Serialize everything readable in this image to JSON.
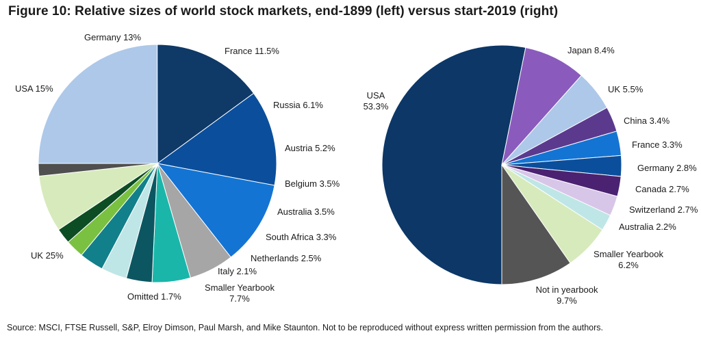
{
  "title": "Figure 10: Relative sizes of world stock markets, end-1899 (left) versus start-2019 (right)",
  "source": "Source: MSCI, FTSE Russell, S&P, Elroy Dimson, Paul Marsh, and Mike Staunton. Not to be reproduced without express written permission from the authors.",
  "chart_data": [
    {
      "type": "pie",
      "title": "",
      "slices": [
        {
          "label": "UK",
          "value": 25,
          "display": "UK 25%",
          "color": "#adc8e9"
        },
        {
          "label": "USA",
          "value": 15,
          "display": "USA 15%",
          "color": "#0f3966"
        },
        {
          "label": "Germany",
          "value": 13,
          "display": "Germany 13%",
          "color": "#0b4f9c"
        },
        {
          "label": "France",
          "value": 11.5,
          "display": "France 11.5%",
          "color": "#1474d3"
        },
        {
          "label": "Russia",
          "value": 6.1,
          "display": "Russia 6.1%",
          "color": "#a6a6a6"
        },
        {
          "label": "Austria",
          "value": 5.2,
          "display": "Austria 5.2%",
          "color": "#1bb6aa"
        },
        {
          "label": "Belgium",
          "value": 3.5,
          "display": "Belgium 3.5%",
          "color": "#0c5661"
        },
        {
          "label": "Australia",
          "value": 3.5,
          "display": "Australia 3.5%",
          "color": "#bfe6e6"
        },
        {
          "label": "South Africa",
          "value": 3.3,
          "display": "South Africa 3.3%",
          "color": "#11808a"
        },
        {
          "label": "Netherlands",
          "value": 2.5,
          "display": "Netherlands 2.5%",
          "color": "#7ac142"
        },
        {
          "label": "Italy",
          "value": 2.1,
          "display": "Italy 2.1%",
          "color": "#0d4d24"
        },
        {
          "label": "Smaller Yearbook",
          "value": 7.7,
          "display": [
            "Smaller Yearbook",
            "7.7%"
          ],
          "color": "#d7eabc"
        },
        {
          "label": "Omitted",
          "value": 1.7,
          "display": "Omitted 1.7%",
          "color": "#4f4f4f"
        }
      ]
    },
    {
      "type": "pie",
      "title": "",
      "slices": [
        {
          "label": "USA",
          "value": 53.3,
          "display": [
            "USA",
            "53.3%"
          ],
          "color": "#0c3767"
        },
        {
          "label": "Japan",
          "value": 8.4,
          "display": "Japan 8.4%",
          "color": "#8a5bbd"
        },
        {
          "label": "UK",
          "value": 5.5,
          "display": "UK 5.5%",
          "color": "#adc8e9"
        },
        {
          "label": "China",
          "value": 3.4,
          "display": "China 3.4%",
          "color": "#5b3a8e"
        },
        {
          "label": "France",
          "value": 3.3,
          "display": "France 3.3%",
          "color": "#1474d3"
        },
        {
          "label": "Germany",
          "value": 2.8,
          "display": "Germany 2.8%",
          "color": "#0b4f9c"
        },
        {
          "label": "Canada",
          "value": 2.7,
          "display": "Canada 2.7%",
          "color": "#4b2271"
        },
        {
          "label": "Switzerland",
          "value": 2.7,
          "display": "Switzerland 2.7%",
          "color": "#d8c6e8"
        },
        {
          "label": "Australia",
          "value": 2.2,
          "display": "Australia 2.2%",
          "color": "#bfe6e6"
        },
        {
          "label": "Smaller Yearbook",
          "value": 6.2,
          "display": [
            "Smaller Yearbook",
            "6.2%"
          ],
          "color": "#d7eabc"
        },
        {
          "label": "Not in yearbook",
          "value": 9.7,
          "display": [
            "Not in yearbook",
            "9.7%"
          ],
          "color": "#555555"
        }
      ]
    }
  ]
}
